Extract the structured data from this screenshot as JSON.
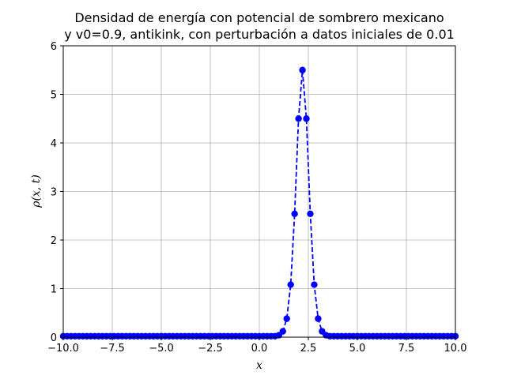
{
  "chart_data": {
    "type": "line",
    "title_lines": [
      "Densidad de energía con potencial de sombrero mexicano",
      "y v0=0.9, antikink, con perturbación a datos iniciales de 0.01"
    ],
    "xlabel": "x",
    "ylabel": "ρ(x, t)",
    "xlim": [
      -10,
      10
    ],
    "ylim": [
      0,
      6
    ],
    "x_ticks": [
      -10,
      -7.5,
      -5,
      -2.5,
      0,
      2.5,
      5,
      7.5,
      10
    ],
    "x_tick_labels": [
      "−10.0",
      "−7.5",
      "−5.0",
      "−2.5",
      "0.0",
      "2.5",
      "5.0",
      "7.5",
      "10.0"
    ],
    "y_ticks": [
      0,
      1,
      2,
      3,
      4,
      5,
      6
    ],
    "y_tick_labels": [
      "0",
      "1",
      "2",
      "3",
      "4",
      "5",
      "6"
    ],
    "grid": true,
    "series": [
      {
        "style": "dashed-line-with-circle-markers",
        "color": "#0000ff",
        "x_start": -10,
        "x_step": 0.2,
        "y": [
          0.02,
          0.02,
          0.02,
          0.02,
          0.02,
          0.02,
          0.02,
          0.02,
          0.02,
          0.02,
          0.02,
          0.02,
          0.02,
          0.02,
          0.02,
          0.02,
          0.02,
          0.02,
          0.02,
          0.02,
          0.02,
          0.02,
          0.02,
          0.02,
          0.02,
          0.02,
          0.02,
          0.02,
          0.02,
          0.02,
          0.02,
          0.02,
          0.02,
          0.02,
          0.02,
          0.02,
          0.02,
          0.02,
          0.02,
          0.02,
          0.02,
          0.02,
          0.02,
          0.02,
          0.02,
          0.02,
          0.02,
          0.02,
          0.02,
          0.02,
          0.02,
          0.02,
          0.02,
          0.02,
          0.02,
          0.04,
          0.12,
          0.38,
          1.08,
          2.54,
          4.5,
          5.5,
          4.5,
          2.54,
          1.08,
          0.38,
          0.12,
          0.04,
          0.02,
          0.02,
          0.02,
          0.02,
          0.02,
          0.02,
          0.02,
          0.02,
          0.02,
          0.02,
          0.02,
          0.02,
          0.02,
          0.02,
          0.02,
          0.02,
          0.02,
          0.02,
          0.02,
          0.02,
          0.02,
          0.02,
          0.02,
          0.02,
          0.02,
          0.02,
          0.02,
          0.02,
          0.02,
          0.02,
          0.02,
          0.02,
          0.02
        ]
      }
    ]
  }
}
